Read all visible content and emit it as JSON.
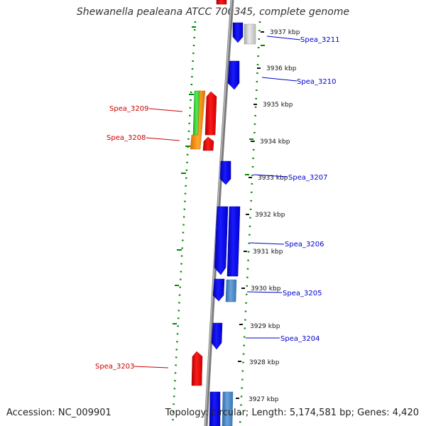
{
  "title": "Shewanella pealeana ATCC 700345, complete genome",
  "footer": {
    "accession_label": "Accession:",
    "accession": "NC_009901",
    "topology_label": "Topology:",
    "topology": "circular",
    "length_label": "Length:",
    "length": "5,174,581 bp",
    "genes_label": "Genes:",
    "genes": "4,420"
  },
  "colors": {
    "plus_strand": "#0000ee",
    "minus_strand": "#ee0000",
    "rna": "#4a86c5",
    "pseudo": "#cccccc",
    "green_feature": "#33cc33",
    "orange_feature": "#ff8c00",
    "backbone": "#888888",
    "gc_ticks": "#008800",
    "plus_label": "#0000cc",
    "minus_label": "#cc0000"
  },
  "scale": {
    "unit": "kbp",
    "ticks": [
      "3937 kbp",
      "3936 kbp",
      "3935 kbp",
      "3934 kbp",
      "3933 kbp",
      "3932 kbp",
      "3931 kbp",
      "3930 kbp",
      "3929 kbp",
      "3928 kbp",
      "3927 kbp"
    ]
  },
  "gene_labels": {
    "plus": [
      "Spea_3211",
      "Spea_3210",
      "Spea_3207",
      "Spea_3206",
      "Spea_3205",
      "Spea_3204"
    ],
    "minus": [
      "Spea_3209",
      "Spea_3208",
      "Spea_3203"
    ]
  }
}
